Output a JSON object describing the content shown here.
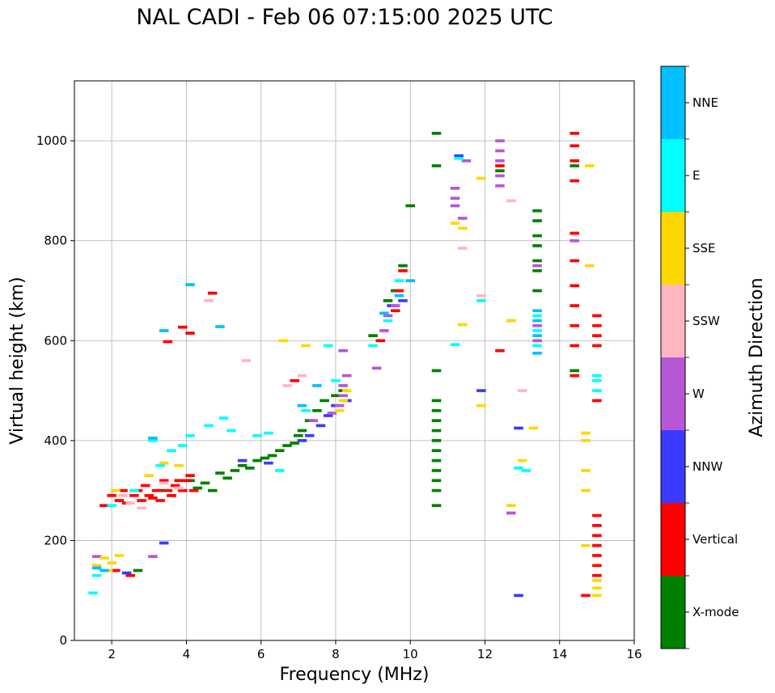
{
  "chart_data": {
    "type": "scatter",
    "title": "NAL CADI - Feb 06 07:15:00 2025 UTC",
    "xlabel": "Frequency (MHz)",
    "ylabel": "Virtual height (km)",
    "xlim": [
      1,
      16
    ],
    "ylim": [
      0,
      1120
    ],
    "xticks": [
      2,
      4,
      6,
      8,
      10,
      12,
      14,
      16
    ],
    "yticks": [
      0,
      200,
      400,
      600,
      800,
      1000
    ],
    "grid": true,
    "colorbar": {
      "label": "Azimuth Direction",
      "categories": [
        {
          "name": "X-mode",
          "color": "#008000"
        },
        {
          "name": "Vertical",
          "color": "#ff0000"
        },
        {
          "name": "NNW",
          "color": "#3b3bff"
        },
        {
          "name": "W",
          "color": "#b657d6"
        },
        {
          "name": "SSW",
          "color": "#ffb6c1"
        },
        {
          "name": "SSE",
          "color": "#ffd700"
        },
        {
          "name": "E",
          "color": "#00ffff"
        },
        {
          "name": "NNE",
          "color": "#00bfff"
        }
      ]
    },
    "bar_width_mhz": 0.25,
    "bar_height_km": 6,
    "series": [
      {
        "name": "X-mode",
        "points": [
          [
            2.7,
            140
          ],
          [
            3.3,
            300
          ],
          [
            3.6,
            290
          ],
          [
            4.1,
            320
          ],
          [
            4.3,
            305
          ],
          [
            4.5,
            315
          ],
          [
            4.7,
            300
          ],
          [
            4.9,
            335
          ],
          [
            5.1,
            325
          ],
          [
            5.3,
            340
          ],
          [
            5.5,
            350
          ],
          [
            5.7,
            345
          ],
          [
            5.9,
            360
          ],
          [
            6.1,
            365
          ],
          [
            6.3,
            370
          ],
          [
            6.5,
            380
          ],
          [
            6.7,
            390
          ],
          [
            6.9,
            395
          ],
          [
            7.0,
            410
          ],
          [
            7.1,
            420
          ],
          [
            7.3,
            440
          ],
          [
            7.5,
            460
          ],
          [
            7.7,
            480
          ],
          [
            8.0,
            490
          ],
          [
            8.2,
            500
          ],
          [
            9.0,
            610
          ],
          [
            9.4,
            680
          ],
          [
            9.6,
            700
          ],
          [
            9.8,
            750
          ],
          [
            10.0,
            870
          ],
          [
            10.7,
            270
          ],
          [
            10.7,
            300
          ],
          [
            10.7,
            320
          ],
          [
            10.7,
            340
          ],
          [
            10.7,
            360
          ],
          [
            10.7,
            380
          ],
          [
            10.7,
            400
          ],
          [
            10.7,
            420
          ],
          [
            10.7,
            440
          ],
          [
            10.7,
            460
          ],
          [
            10.7,
            480
          ],
          [
            10.7,
            540
          ],
          [
            10.7,
            950
          ],
          [
            10.7,
            1015
          ],
          [
            12.4,
            940
          ],
          [
            13.4,
            700
          ],
          [
            13.4,
            740
          ],
          [
            13.4,
            760
          ],
          [
            13.4,
            790
          ],
          [
            13.4,
            810
          ],
          [
            13.4,
            840
          ],
          [
            13.4,
            860
          ],
          [
            14.4,
            540
          ],
          [
            14.4,
            950
          ]
        ]
      },
      {
        "name": "Vertical",
        "points": [
          [
            1.8,
            270
          ],
          [
            2.0,
            290
          ],
          [
            2.1,
            140
          ],
          [
            2.2,
            280
          ],
          [
            2.3,
            300
          ],
          [
            2.4,
            275
          ],
          [
            2.5,
            130
          ],
          [
            2.6,
            290
          ],
          [
            2.7,
            300
          ],
          [
            2.8,
            280
          ],
          [
            2.9,
            310
          ],
          [
            3.0,
            290
          ],
          [
            3.1,
            285
          ],
          [
            3.2,
            300
          ],
          [
            3.3,
            280
          ],
          [
            3.4,
            320
          ],
          [
            3.5,
            300
          ],
          [
            3.6,
            290
          ],
          [
            3.7,
            310
          ],
          [
            3.8,
            320
          ],
          [
            3.9,
            300
          ],
          [
            4.0,
            320
          ],
          [
            4.1,
            330
          ],
          [
            4.2,
            300
          ],
          [
            3.5,
            598
          ],
          [
            3.9,
            627
          ],
          [
            4.1,
            615
          ],
          [
            4.7,
            695
          ],
          [
            6.9,
            520
          ],
          [
            9.2,
            600
          ],
          [
            9.6,
            660
          ],
          [
            9.7,
            700
          ],
          [
            9.8,
            740
          ],
          [
            12.4,
            580
          ],
          [
            12.4,
            950
          ],
          [
            14.4,
            530
          ],
          [
            14.4,
            590
          ],
          [
            14.4,
            630
          ],
          [
            14.4,
            670
          ],
          [
            14.4,
            710
          ],
          [
            14.4,
            760
          ],
          [
            14.4,
            815
          ],
          [
            14.4,
            920
          ],
          [
            14.4,
            960
          ],
          [
            14.4,
            990
          ],
          [
            14.4,
            1015
          ],
          [
            14.7,
            90
          ],
          [
            15.0,
            130
          ],
          [
            15.0,
            150
          ],
          [
            15.0,
            170
          ],
          [
            15.0,
            190
          ],
          [
            15.0,
            210
          ],
          [
            15.0,
            230
          ],
          [
            15.0,
            250
          ],
          [
            15.0,
            480
          ],
          [
            15.0,
            590
          ],
          [
            15.0,
            610
          ],
          [
            15.0,
            630
          ],
          [
            15.0,
            650
          ]
        ]
      },
      {
        "name": "NNW",
        "points": [
          [
            2.4,
            135
          ],
          [
            3.4,
            195
          ],
          [
            5.5,
            360
          ],
          [
            6.2,
            355
          ],
          [
            7.1,
            400
          ],
          [
            7.3,
            410
          ],
          [
            7.6,
            430
          ],
          [
            7.8,
            450
          ],
          [
            8.0,
            470
          ],
          [
            8.3,
            480
          ],
          [
            9.5,
            670
          ],
          [
            9.8,
            680
          ],
          [
            11.3,
            970
          ],
          [
            11.9,
            500
          ],
          [
            12.9,
            90
          ],
          [
            12.9,
            425
          ]
        ]
      },
      {
        "name": "W",
        "points": [
          [
            1.6,
            168
          ],
          [
            3.1,
            168
          ],
          [
            7.4,
            440
          ],
          [
            7.9,
            455
          ],
          [
            8.1,
            470
          ],
          [
            8.2,
            490
          ],
          [
            8.2,
            510
          ],
          [
            8.3,
            530
          ],
          [
            8.2,
            580
          ],
          [
            9.1,
            545
          ],
          [
            9.3,
            620
          ],
          [
            9.4,
            650
          ],
          [
            9.6,
            670
          ],
          [
            11.2,
            870
          ],
          [
            11.2,
            885
          ],
          [
            11.2,
            905
          ],
          [
            11.4,
            845
          ],
          [
            11.5,
            960
          ],
          [
            12.4,
            910
          ],
          [
            12.4,
            930
          ],
          [
            12.4,
            960
          ],
          [
            12.4,
            980
          ],
          [
            12.4,
            1000
          ],
          [
            12.7,
            255
          ],
          [
            13.4,
            600
          ],
          [
            13.4,
            630
          ],
          [
            13.4,
            750
          ],
          [
            14.4,
            800
          ]
        ]
      },
      {
        "name": "SSW",
        "points": [
          [
            2.3,
            290
          ],
          [
            2.5,
            275
          ],
          [
            2.8,
            265
          ],
          [
            3.4,
            315
          ],
          [
            3.8,
            305
          ],
          [
            4.6,
            680
          ],
          [
            5.6,
            560
          ],
          [
            6.7,
            510
          ],
          [
            7.1,
            530
          ],
          [
            11.4,
            785
          ],
          [
            11.9,
            690
          ],
          [
            12.7,
            880
          ],
          [
            12.7,
            640
          ],
          [
            13.0,
            500
          ]
        ]
      },
      {
        "name": "SSE",
        "points": [
          [
            1.6,
            150
          ],
          [
            1.8,
            165
          ],
          [
            1.9,
            140
          ],
          [
            2.0,
            155
          ],
          [
            2.2,
            170
          ],
          [
            2.1,
            300
          ],
          [
            3.0,
            330
          ],
          [
            3.4,
            355
          ],
          [
            3.8,
            350
          ],
          [
            6.6,
            600
          ],
          [
            7.2,
            590
          ],
          [
            8.1,
            460
          ],
          [
            8.2,
            480
          ],
          [
            8.3,
            500
          ],
          [
            11.2,
            835
          ],
          [
            11.4,
            825
          ],
          [
            11.4,
            632
          ],
          [
            11.9,
            470
          ],
          [
            11.9,
            925
          ],
          [
            12.7,
            640
          ],
          [
            12.7,
            270
          ],
          [
            13.0,
            360
          ],
          [
            13.3,
            425
          ],
          [
            14.7,
            190
          ],
          [
            14.7,
            300
          ],
          [
            14.7,
            340
          ],
          [
            14.7,
            400
          ],
          [
            14.7,
            415
          ],
          [
            14.8,
            750
          ],
          [
            14.8,
            950
          ],
          [
            15.0,
            90
          ],
          [
            15.0,
            105
          ],
          [
            15.0,
            120
          ]
        ]
      },
      {
        "name": "E",
        "points": [
          [
            1.5,
            95
          ],
          [
            1.6,
            130
          ],
          [
            2.0,
            270
          ],
          [
            2.6,
            300
          ],
          [
            3.1,
            400
          ],
          [
            3.3,
            350
          ],
          [
            3.6,
            380
          ],
          [
            3.9,
            390
          ],
          [
            4.1,
            410
          ],
          [
            4.6,
            430
          ],
          [
            5.0,
            445
          ],
          [
            5.2,
            420
          ],
          [
            5.9,
            410
          ],
          [
            6.2,
            415
          ],
          [
            6.5,
            340
          ],
          [
            7.2,
            460
          ],
          [
            7.8,
            590
          ],
          [
            8.0,
            520
          ],
          [
            9.0,
            590
          ],
          [
            9.4,
            640
          ],
          [
            9.7,
            720
          ],
          [
            11.3,
            965
          ],
          [
            11.2,
            592
          ],
          [
            11.9,
            680
          ],
          [
            12.9,
            345
          ],
          [
            13.1,
            340
          ],
          [
            13.4,
            590
          ],
          [
            13.4,
            620
          ],
          [
            13.4,
            650
          ],
          [
            15.0,
            500
          ],
          [
            15.0,
            520
          ],
          [
            15.0,
            530
          ]
        ]
      },
      {
        "name": "NNE",
        "points": [
          [
            1.6,
            145
          ],
          [
            1.8,
            140
          ],
          [
            3.1,
            405
          ],
          [
            3.4,
            620
          ],
          [
            4.1,
            712
          ],
          [
            4.9,
            628
          ],
          [
            7.1,
            470
          ],
          [
            7.5,
            510
          ],
          [
            9.3,
            655
          ],
          [
            9.7,
            690
          ],
          [
            10.0,
            720
          ],
          [
            13.4,
            575
          ],
          [
            13.4,
            610
          ],
          [
            13.4,
            640
          ],
          [
            13.4,
            660
          ]
        ]
      }
    ]
  }
}
